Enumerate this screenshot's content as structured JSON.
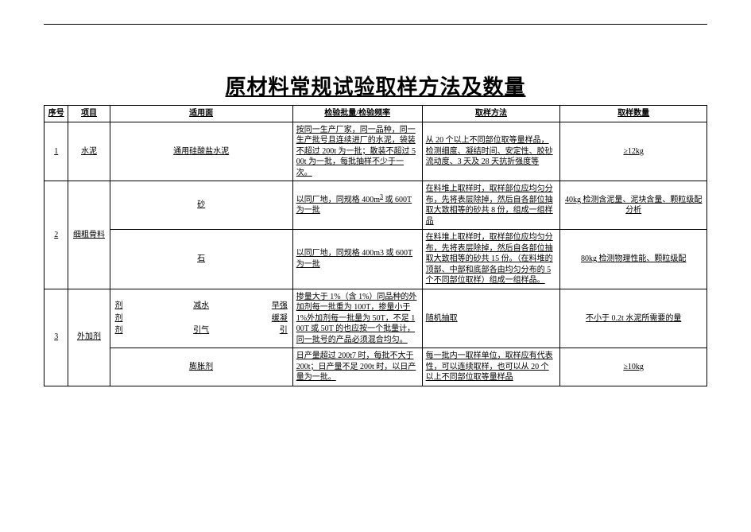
{
  "title": "原材料常规试验取样方法及数量",
  "columns": [
    "序号",
    "项目",
    "适用面",
    "检验批量/检验频率",
    "取样方法",
    "取样数量"
  ],
  "rows": {
    "r1": {
      "seq": "1",
      "item": "水泥",
      "scope": "通用硅酸盐水泥",
      "batch": "按同一生产厂家，同一品种，同一生产批号且连续进厂的水泥，袋装不超过 200t 为一批；散装不超过 500t 为一批，每批抽样不少于一次。",
      "method": "从 20 个以上不同部位取等量样品，检测细度、凝结时间、安定性、胶砂流动度、3 天及 28 天抗折强度等",
      "qty": "≥12kg"
    },
    "r2a": {
      "item": "细粗骨料",
      "scope": "砂",
      "batch_prefix": "以同厂地，同规格 400m",
      "batch_sup": "3",
      "batch_suffix": " 或 600T 为一批",
      "method": "在料堆上取样时，取样部位应均匀分布，先将表层除掉，然后自各部位抽取大致相等的砂共 8 份，组成一组样品",
      "qty": "40kg 检测含泥量、泥块含量、颗粒级配分析"
    },
    "r2b": {
      "scope": "石",
      "batch": "以同厂地，同规格 400m3 或 600T 为一批",
      "method": "在料堆上取样时，取样部位应均匀分布，先将表层除掉，然后自各部位抽取大致相等的砂共 15 份。（在料堆的顶部、中部和底部各由均匀分布的 5 个不同部位取样）组成一组样品。",
      "qty": "80kg 检测物理性能、颗粒级配"
    },
    "r3a": {
      "seq": "3",
      "item": "外加剂",
      "inner": {
        "col1": [
          "剂",
          "剂",
          "剂"
        ],
        "col2": [
          "减水",
          "",
          "引气"
        ],
        "col3": [
          "早强",
          "缓凝",
          "引"
        ]
      },
      "batch": "掺量大于 1%（含 1%）同品种的外加剂每一批重为 100T，掺量小于 1%外加剂每一批量为 50T，不足 100T 或 50T 的也应按一个批量计，同一批号的产品必须混合均匀。",
      "method": "随机抽取",
      "qty": "不小于 0.2t 水泥所需要的量"
    },
    "r3b": {
      "scope": "膨胀剂",
      "batch": "日产量超过 200t7 时，每批不大于 200t；日产量不足 200t 时，以日产量为一批。",
      "method": "每一批内一取样单位，取样应有代表性，可以连续取样，也可以从 20 个以上不同部位取等量样品",
      "qty": "≥10kg"
    }
  }
}
